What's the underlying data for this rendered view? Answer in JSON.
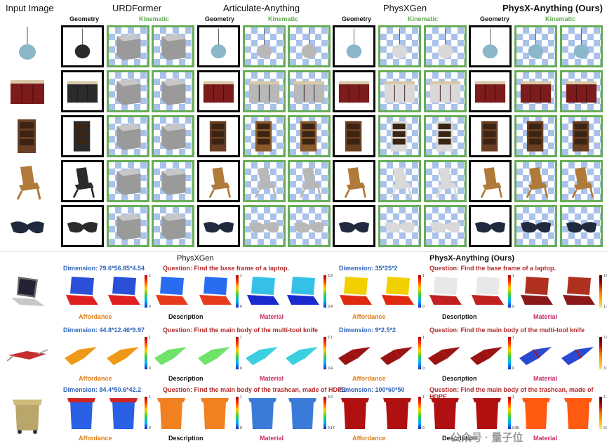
{
  "top": {
    "input_label": "Input Image",
    "methods": [
      {
        "name": "URDFormer",
        "geometry": "Geometry",
        "kinematic": "Kinematic"
      },
      {
        "name": "Articulate-Anything",
        "geometry": "Geometry",
        "kinematic": "Kinematic"
      },
      {
        "name": "PhysXGen",
        "geometry": "Geometry",
        "kinematic": "Kinematic"
      },
      {
        "name": "PhysX-Anything (Ours)",
        "geometry": "Geometry",
        "kinematic": "Kinematic"
      }
    ],
    "rows": [
      "pendant-lamp",
      "kitchen-cabinet",
      "bookshelf",
      "folding-chair",
      "sunglasses"
    ]
  },
  "bottom": {
    "left_title": "PhysXGen",
    "right_title": "PhysX-Anything (Ours)",
    "rows": [
      {
        "object": "laptop",
        "left_dim": "Dimension: 79.6*56.85*4.54",
        "right_dim": "Dimension: 35*25*2",
        "question": "Question: Find the base frame of a laptop.",
        "scales": {
          "left": [
            [
              "1",
              "0"
            ],
            [
              "1",
              "0"
            ],
            [
              "5.9",
              "3.4"
            ]
          ],
          "right": [
            [
              "1",
              "0"
            ],
            [
              "1",
              "0"
            ],
            [
              "1.8",
              "1.2"
            ]
          ]
        }
      },
      {
        "object": "multi-tool-knife",
        "left_dim": "Dimension: 44.8*12.46*9.97",
        "right_dim": "Dimension: 9*2.5*2",
        "question": "Question: Find the main body of the multi-tool knife",
        "scales": {
          "left": [
            [
              "1",
              "0"
            ],
            [
              "1",
              "0"
            ],
            [
              "2.1",
              "0.4"
            ]
          ],
          "right": [
            [
              "1",
              "0"
            ],
            [
              "1",
              "0"
            ],
            [
              "7.8",
              "3.2"
            ]
          ]
        }
      },
      {
        "object": "trashcan",
        "left_dim": "Dimension: 84.4*50.6*42.2",
        "right_dim": "Dimension: 100*60*50",
        "question": "Question: Find the main body of the trashcan, made of HDPE",
        "scales": {
          "left": [
            [
              "1",
              "0"
            ],
            [
              "1",
              "0"
            ],
            [
              "4.3",
              "0.17"
            ]
          ],
          "right": [
            [
              "1",
              "0"
            ],
            [
              "1",
              "0.95"
            ],
            [
              "1.1",
              "0.95"
            ]
          ]
        }
      }
    ],
    "labels": {
      "affordance": "Affordance",
      "description": "Description",
      "material": "Material"
    }
  },
  "watermark": "公众号 · 量子位",
  "colors": {
    "kinematic_border": "#67ad57",
    "geometry_border": "#0b0b0b",
    "dim_blue": "#2e63b8",
    "question_red": "#b22a2a"
  }
}
